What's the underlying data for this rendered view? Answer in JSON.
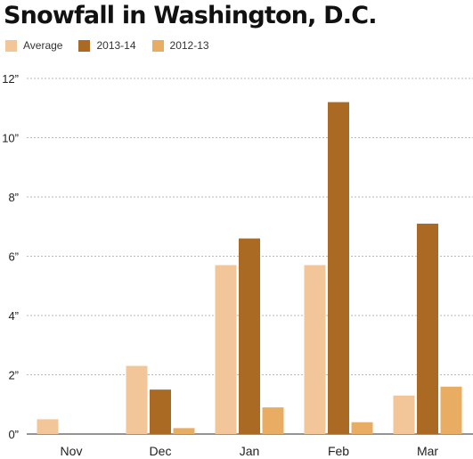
{
  "chart_data": {
    "type": "bar",
    "title": "Snowfall in Washington, D.C.",
    "xlabel": "",
    "ylabel": "",
    "categories": [
      "Nov",
      "Dec",
      "Jan",
      "Feb",
      "Mar"
    ],
    "series": [
      {
        "name": "Average",
        "color": "#f3c699",
        "values": [
          0.5,
          2.3,
          5.7,
          5.7,
          1.3
        ]
      },
      {
        "name": "2013-14",
        "color": "#aa6a24",
        "values": [
          0,
          1.5,
          6.6,
          11.2,
          7.1
        ]
      },
      {
        "name": "2012-13",
        "color": "#e8ad63",
        "values": [
          0,
          0.2,
          0.9,
          0.4,
          1.6
        ]
      }
    ],
    "ylim": [
      0,
      12
    ],
    "yticks": [
      0,
      2,
      4,
      6,
      8,
      10,
      12
    ],
    "ytick_labels": [
      "0”",
      "2”",
      "4”",
      "6”",
      "8”",
      "10”",
      "12”"
    ],
    "grid": true,
    "legend_position": "top-left"
  }
}
